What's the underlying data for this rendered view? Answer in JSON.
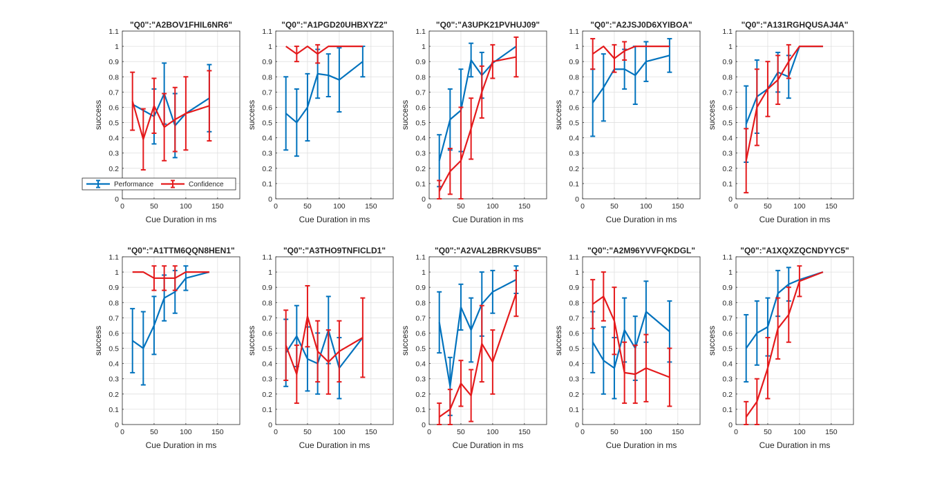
{
  "figure": {
    "legend": {
      "position": "bottom of first panel",
      "entries": [
        "Performance",
        "Confidence"
      ]
    }
  },
  "chart_data": [
    {
      "type": "line",
      "title": "\"Q0\":\"A2BOV1FHIL6NR6\"",
      "xlabel": "Cue Duration in ms",
      "ylabel": "success",
      "xlim": [
        0,
        185
      ],
      "ylim": [
        0,
        1.1
      ],
      "grid": true,
      "show_legend": true,
      "series": [
        {
          "name": "Performance",
          "color": "#0072BD",
          "x": [
            16,
            33,
            50,
            66,
            83,
            100,
            137
          ],
          "y": [
            0.62,
            0.58,
            0.54,
            0.69,
            0.48,
            0.56,
            0.66
          ],
          "err": [
            0.0,
            0.0,
            0.18,
            0.2,
            0.21,
            0.0,
            0.22
          ]
        },
        {
          "name": "Confidence",
          "color": "#E41A1C",
          "x": [
            16,
            33,
            50,
            66,
            83,
            100,
            137
          ],
          "y": [
            0.64,
            0.39,
            0.61,
            0.47,
            0.52,
            0.56,
            0.61
          ],
          "err": [
            0.19,
            0.2,
            0.18,
            0.22,
            0.21,
            0.24,
            0.23
          ]
        }
      ]
    },
    {
      "type": "line",
      "title": "\"Q0\":\"A1PGD20UHBXYZ2\"",
      "xlabel": "Cue Duration in ms",
      "ylabel": "success",
      "xlim": [
        0,
        185
      ],
      "ylim": [
        0,
        1.1
      ],
      "grid": true,
      "series": [
        {
          "name": "Performance",
          "color": "#0072BD",
          "x": [
            16,
            33,
            50,
            66,
            83,
            100,
            137
          ],
          "y": [
            0.56,
            0.5,
            0.6,
            0.82,
            0.81,
            0.78,
            0.9
          ],
          "err": [
            0.24,
            0.22,
            0.22,
            0.16,
            0.14,
            0.21,
            0.1
          ]
        },
        {
          "name": "Confidence",
          "color": "#E41A1C",
          "x": [
            16,
            33,
            50,
            66,
            83,
            100,
            137
          ],
          "y": [
            1.0,
            0.95,
            1.0,
            0.95,
            1.0,
            1.0,
            1.0
          ],
          "err": [
            0.0,
            0.05,
            0.0,
            0.06,
            0.0,
            0.0,
            0.0
          ]
        }
      ]
    },
    {
      "type": "line",
      "title": "\"Q0\":\"A3UPK21PVHUJ09\"",
      "xlabel": "Cue Duration in ms",
      "ylabel": "success",
      "xlim": [
        0,
        185
      ],
      "ylim": [
        0,
        1.1
      ],
      "grid": true,
      "series": [
        {
          "name": "Performance",
          "color": "#0072BD",
          "x": [
            16,
            33,
            50,
            66,
            83,
            100,
            137
          ],
          "y": [
            0.25,
            0.52,
            0.58,
            0.91,
            0.81,
            0.89,
            1.0
          ],
          "err": [
            0.17,
            0.2,
            0.27,
            0.11,
            0.15,
            0.0,
            0.0
          ]
        },
        {
          "name": "Confidence",
          "color": "#E41A1C",
          "x": [
            16,
            33,
            50,
            66,
            83,
            100,
            137
          ],
          "y": [
            0.05,
            0.18,
            0.25,
            0.46,
            0.7,
            0.9,
            0.93
          ],
          "err": [
            0.07,
            0.15,
            0.35,
            0.2,
            0.17,
            0.11,
            0.13
          ]
        }
      ]
    },
    {
      "type": "line",
      "title": "\"Q0\":\"A2JSJ0D6XYIBOA\"",
      "xlabel": "Cue Duration in ms",
      "ylabel": "success",
      "xlim": [
        0,
        185
      ],
      "ylim": [
        0,
        1.1
      ],
      "grid": true,
      "series": [
        {
          "name": "Performance",
          "color": "#0072BD",
          "x": [
            16,
            33,
            50,
            66,
            83,
            100,
            137
          ],
          "y": [
            0.63,
            0.73,
            0.85,
            0.85,
            0.81,
            0.9,
            0.94
          ],
          "err": [
            0.22,
            0.22,
            0.0,
            0.13,
            0.19,
            0.13,
            0.11
          ]
        },
        {
          "name": "Confidence",
          "color": "#E41A1C",
          "x": [
            16,
            33,
            50,
            66,
            83,
            100,
            137
          ],
          "y": [
            0.95,
            1.0,
            0.92,
            0.97,
            1.0,
            1.0,
            1.0
          ],
          "err": [
            0.1,
            0.0,
            0.09,
            0.06,
            0.0,
            0.0,
            0.0
          ]
        }
      ]
    },
    {
      "type": "line",
      "title": "\"Q0\":\"A131RGHQUSAJ4A\"",
      "xlabel": "Cue Duration in ms",
      "ylabel": "success",
      "xlim": [
        0,
        185
      ],
      "ylim": [
        0,
        1.1
      ],
      "grid": true,
      "series": [
        {
          "name": "Performance",
          "color": "#0072BD",
          "x": [
            16,
            33,
            50,
            66,
            83,
            100,
            137
          ],
          "y": [
            0.49,
            0.67,
            0.72,
            0.83,
            0.8,
            1.0,
            1.0
          ],
          "err": [
            0.25,
            0.24,
            0.0,
            0.13,
            0.14,
            0.0,
            0.0
          ]
        },
        {
          "name": "Confidence",
          "color": "#E41A1C",
          "x": [
            16,
            33,
            50,
            66,
            83,
            100,
            137
          ],
          "y": [
            0.25,
            0.6,
            0.72,
            0.78,
            0.9,
            1.0,
            1.0
          ],
          "err": [
            0.21,
            0.25,
            0.18,
            0.16,
            0.11,
            0.0,
            0.0
          ]
        }
      ]
    },
    {
      "type": "line",
      "title": "\"Q0\":\"A1TTM6QQN8HEN1\"",
      "xlabel": "Cue Duration in ms",
      "ylabel": "success",
      "xlim": [
        0,
        185
      ],
      "ylim": [
        0,
        1.1
      ],
      "grid": true,
      "series": [
        {
          "name": "Performance",
          "color": "#0072BD",
          "x": [
            16,
            33,
            50,
            66,
            83,
            100,
            137
          ],
          "y": [
            0.55,
            0.5,
            0.65,
            0.83,
            0.87,
            0.96,
            1.0
          ],
          "err": [
            0.21,
            0.24,
            0.19,
            0.15,
            0.14,
            0.08,
            0.0
          ]
        },
        {
          "name": "Confidence",
          "color": "#E41A1C",
          "x": [
            16,
            33,
            50,
            66,
            83,
            100,
            137
          ],
          "y": [
            1.0,
            1.0,
            0.96,
            0.96,
            0.96,
            1.0,
            1.0
          ],
          "err": [
            0.0,
            0.0,
            0.08,
            0.08,
            0.08,
            0.0,
            0.0
          ]
        }
      ]
    },
    {
      "type": "line",
      "title": "\"Q0\":\"A3THO9TNFICLD1\"",
      "xlabel": "Cue Duration in ms",
      "ylabel": "success",
      "xlim": [
        0,
        185
      ],
      "ylim": [
        0,
        1.1
      ],
      "grid": true,
      "series": [
        {
          "name": "Performance",
          "color": "#0072BD",
          "x": [
            16,
            33,
            50,
            66,
            83,
            100,
            137
          ],
          "y": [
            0.47,
            0.58,
            0.43,
            0.4,
            0.62,
            0.37,
            0.57
          ],
          "err": [
            0.22,
            0.2,
            0.21,
            0.2,
            0.22,
            0.2,
            0.0
          ]
        },
        {
          "name": "Confidence",
          "color": "#E41A1C",
          "x": [
            16,
            33,
            50,
            66,
            83,
            100,
            137
          ],
          "y": [
            0.52,
            0.33,
            0.71,
            0.48,
            0.41,
            0.48,
            0.57
          ],
          "err": [
            0.23,
            0.19,
            0.2,
            0.2,
            0.21,
            0.2,
            0.26
          ]
        }
      ]
    },
    {
      "type": "line",
      "title": "\"Q0\":\"A2VAL2BRKVSUB5\"",
      "xlabel": "Cue Duration in ms",
      "ylabel": "success",
      "xlim": [
        0,
        185
      ],
      "ylim": [
        0,
        1.1
      ],
      "grid": true,
      "series": [
        {
          "name": "Performance",
          "color": "#0072BD",
          "x": [
            16,
            33,
            50,
            66,
            83,
            100,
            137
          ],
          "y": [
            0.67,
            0.25,
            0.77,
            0.62,
            0.79,
            0.87,
            0.95
          ],
          "err": [
            0.2,
            0.19,
            0.15,
            0.21,
            0.21,
            0.14,
            0.09
          ]
        },
        {
          "name": "Confidence",
          "color": "#E41A1C",
          "x": [
            16,
            33,
            50,
            66,
            83,
            100,
            137
          ],
          "y": [
            0.05,
            0.1,
            0.27,
            0.19,
            0.53,
            0.41,
            0.86
          ],
          "err": [
            0.09,
            0.13,
            0.15,
            0.17,
            0.25,
            0.21,
            0.15
          ]
        }
      ]
    },
    {
      "type": "line",
      "title": "\"Q0\":\"A2M96YVVFQKDGL\"",
      "xlabel": "Cue Duration in ms",
      "ylabel": "success",
      "xlim": [
        0,
        185
      ],
      "ylim": [
        0,
        1.1
      ],
      "grid": true,
      "series": [
        {
          "name": "Performance",
          "color": "#0072BD",
          "x": [
            16,
            33,
            50,
            66,
            83,
            100,
            137
          ],
          "y": [
            0.54,
            0.42,
            0.37,
            0.62,
            0.5,
            0.74,
            0.61
          ],
          "err": [
            0.2,
            0.22,
            0.2,
            0.21,
            0.21,
            0.2,
            0.2
          ]
        },
        {
          "name": "Confidence",
          "color": "#E41A1C",
          "x": [
            16,
            33,
            50,
            66,
            83,
            100,
            137
          ],
          "y": [
            0.79,
            0.84,
            0.68,
            0.34,
            0.33,
            0.37,
            0.31
          ],
          "err": [
            0.16,
            0.16,
            0.22,
            0.2,
            0.19,
            0.22,
            0.19
          ]
        }
      ]
    },
    {
      "type": "line",
      "title": "\"Q0\":\"A1XQXZQCNDYYC5\"",
      "xlabel": "Cue Duration in ms",
      "ylabel": "success",
      "xlim": [
        0,
        185
      ],
      "ylim": [
        0,
        1.1
      ],
      "grid": true,
      "series": [
        {
          "name": "Performance",
          "color": "#0072BD",
          "x": [
            16,
            33,
            50,
            66,
            83,
            100,
            137
          ],
          "y": [
            0.5,
            0.6,
            0.64,
            0.86,
            0.92,
            0.95,
            1.0
          ],
          "err": [
            0.22,
            0.21,
            0.19,
            0.15,
            0.11,
            0.0,
            0.0
          ]
        },
        {
          "name": "Confidence",
          "color": "#E41A1C",
          "x": [
            16,
            33,
            50,
            66,
            83,
            100,
            137
          ],
          "y": [
            0.05,
            0.15,
            0.37,
            0.63,
            0.72,
            0.94,
            1.0
          ],
          "err": [
            0.1,
            0.15,
            0.2,
            0.2,
            0.18,
            0.1,
            0.0
          ]
        }
      ]
    }
  ]
}
